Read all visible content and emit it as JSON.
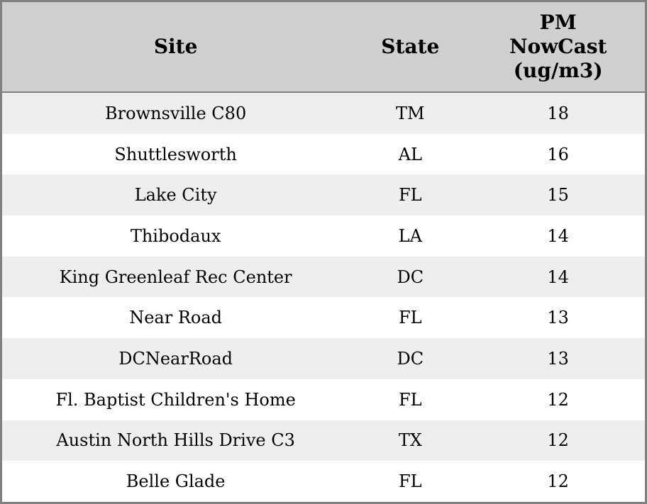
{
  "table": {
    "columns": [
      {
        "key": "site",
        "label": "Site"
      },
      {
        "key": "state",
        "label": "State"
      },
      {
        "key": "pm",
        "label": "PM NowCast (ug/m3)"
      }
    ],
    "rows": [
      {
        "site": "Brownsville C80",
        "state": "TM",
        "pm": "18"
      },
      {
        "site": "Shuttlesworth",
        "state": "AL",
        "pm": "16"
      },
      {
        "site": "Lake City",
        "state": "FL",
        "pm": "15"
      },
      {
        "site": "Thibodaux",
        "state": "LA",
        "pm": "14"
      },
      {
        "site": "King Greenleaf Rec Center",
        "state": "DC",
        "pm": "14"
      },
      {
        "site": "Near Road",
        "state": "FL",
        "pm": "13"
      },
      {
        "site": "DCNearRoad",
        "state": "DC",
        "pm": "13"
      },
      {
        "site": "Fl. Baptist Children's Home",
        "state": "FL",
        "pm": "12"
      },
      {
        "site": "Austin North Hills Drive C3",
        "state": "TX",
        "pm": "12"
      },
      {
        "site": "Belle Glade",
        "state": "FL",
        "pm": "12"
      }
    ]
  },
  "colors": {
    "header_bg": "#d0d0d0",
    "row_alt_bg": "#eeeeee",
    "row_bg": "#ffffff",
    "border": "#808080",
    "text": "#000000"
  },
  "chart_data": {
    "type": "table",
    "title": "",
    "columns": [
      "Site",
      "State",
      "PM NowCast (ug/m3)"
    ],
    "rows": [
      [
        "Brownsville C80",
        "TM",
        18
      ],
      [
        "Shuttlesworth",
        "AL",
        16
      ],
      [
        "Lake City",
        "FL",
        15
      ],
      [
        "Thibodaux",
        "LA",
        14
      ],
      [
        "King Greenleaf Rec Center",
        "DC",
        14
      ],
      [
        "Near Road",
        "FL",
        13
      ],
      [
        "DCNearRoad",
        "DC",
        13
      ],
      [
        "Fl. Baptist Children's Home",
        "FL",
        12
      ],
      [
        "Austin North Hills Drive C3",
        "TX",
        12
      ],
      [
        "Belle Glade",
        "FL",
        12
      ]
    ],
    "layout_hints": {
      "zebra_striping": true,
      "header_bold": true,
      "alignment": "center"
    }
  }
}
